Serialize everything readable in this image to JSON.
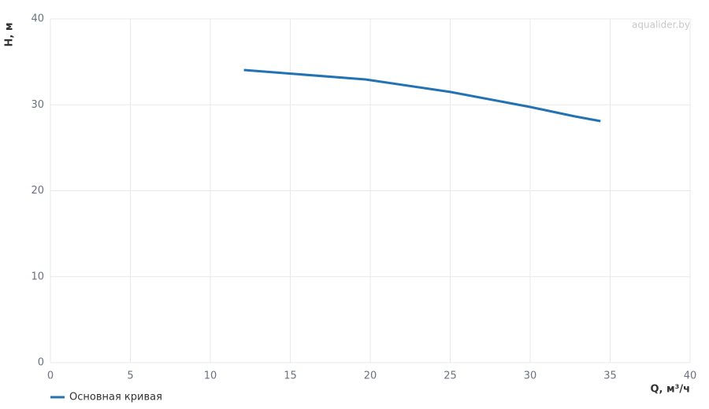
{
  "chart_data": {
    "type": "line",
    "watermark": "aqualider.by",
    "xlabel": "Q, м³/ч",
    "ylabel": "H, м",
    "x": [
      12.1,
      19.7,
      25.0,
      30.0,
      32.8,
      34.4
    ],
    "series": [
      {
        "name": "Основная кривая",
        "color": "#2272b4",
        "values": [
          34.05,
          32.95,
          31.5,
          29.75,
          28.65,
          28.1
        ]
      }
    ],
    "xlim": [
      0,
      40
    ],
    "xticks": [
      0,
      5,
      10,
      15,
      20,
      25,
      30,
      35,
      40
    ],
    "ylim": [
      0,
      40
    ],
    "yticks": [
      0,
      10,
      20,
      30,
      40
    ],
    "grid": true,
    "legend": "bottom-left"
  }
}
